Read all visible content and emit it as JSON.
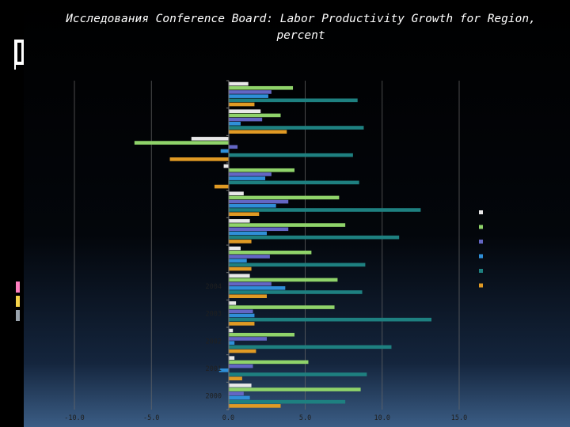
{
  "title": "Исследования Conference Board: Labor Productivity Growth for Region, percent",
  "colors": {
    "deco_accents": [
      "#e8e8e8",
      "#8fd36a",
      "#6366c4",
      "#2f8fd8",
      "#1e8080",
      "#e09a24"
    ]
  },
  "chart_data": {
    "type": "bar",
    "orientation": "horizontal",
    "title": "Исследования Conference Board: Labor Productivity Growth for Region, percent",
    "xlim": [
      -10,
      15
    ],
    "x_ticks": [
      "-10.0",
      "-5.0",
      "0.0",
      "5.0",
      "10.0",
      "15.0"
    ],
    "x_tick_values": [
      -10,
      -5,
      0,
      5,
      10,
      15
    ],
    "grid": true,
    "legend": "right",
    "categories": [
      "2000",
      "2001",
      "2002",
      "2003",
      "2004",
      "",
      "",
      "",
      "",
      "",
      "",
      ""
    ],
    "category_labels_visible": [
      "2000",
      "2001",
      "2002",
      "2003",
      "2004",
      "",
      "",
      "",
      "",
      "",
      "",
      ""
    ],
    "series": [
      {
        "color": "#e8e8e8",
        "values": [
          1.5,
          0.4,
          0.3,
          0.5,
          1.4,
          0.8,
          1.4,
          1.0,
          -0.3,
          -2.4,
          2.1,
          1.3
        ]
      },
      {
        "color": "#8fd36a",
        "values": [
          8.6,
          5.2,
          4.3,
          6.9,
          7.1,
          5.4,
          7.6,
          7.2,
          4.3,
          -6.1,
          3.4,
          4.2
        ]
      },
      {
        "color": "#6366c4",
        "values": [
          1.0,
          1.6,
          2.5,
          1.6,
          2.8,
          2.7,
          3.9,
          3.9,
          2.8,
          0.6,
          2.2,
          2.8
        ]
      },
      {
        "color": "#2f8fd8",
        "values": [
          1.4,
          -0.6,
          0.4,
          1.7,
          3.7,
          1.2,
          2.5,
          3.1,
          2.4,
          -0.5,
          0.8,
          2.6
        ]
      },
      {
        "color": "#1e8080",
        "values": [
          7.6,
          9.0,
          10.6,
          13.2,
          8.7,
          8.9,
          11.1,
          12.5,
          8.5,
          8.1,
          8.8,
          8.4
        ]
      },
      {
        "color": "#e09a24",
        "values": [
          3.4,
          0.9,
          1.8,
          1.7,
          2.5,
          1.5,
          1.5,
          2.0,
          -0.9,
          -3.8,
          3.8,
          1.7
        ]
      }
    ]
  }
}
